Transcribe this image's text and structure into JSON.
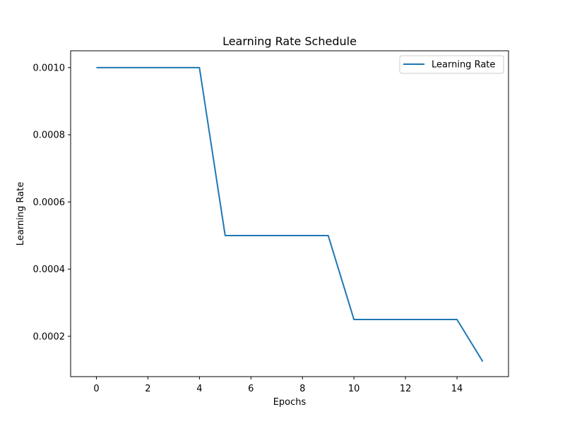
{
  "chart_data": {
    "type": "line",
    "title": "Learning Rate Schedule",
    "xlabel": "Epochs",
    "ylabel": "Learning Rate",
    "xlim": [
      -1,
      16
    ],
    "ylim": [
      8e-05,
      0.00105
    ],
    "xticks": [
      0,
      2,
      4,
      6,
      8,
      10,
      12,
      14
    ],
    "xtick_labels": [
      "0",
      "2",
      "4",
      "6",
      "8",
      "10",
      "12",
      "14"
    ],
    "yticks": [
      0.0002,
      0.0004,
      0.0006,
      0.0008,
      0.001
    ],
    "ytick_labels": [
      "0.0002",
      "0.0004",
      "0.0006",
      "0.0008",
      "0.0010"
    ],
    "grid": false,
    "legend_position": "top-right",
    "x": [
      0,
      1,
      2,
      3,
      4,
      5,
      6,
      7,
      8,
      9,
      10,
      11,
      12,
      13,
      14,
      15
    ],
    "series": [
      {
        "name": "Learning Rate",
        "color": "#1f77b4",
        "values": [
          0.001,
          0.001,
          0.001,
          0.001,
          0.001,
          0.0005,
          0.0005,
          0.0005,
          0.0005,
          0.0005,
          0.00025,
          0.00025,
          0.00025,
          0.00025,
          0.00025,
          0.000125
        ]
      }
    ]
  }
}
